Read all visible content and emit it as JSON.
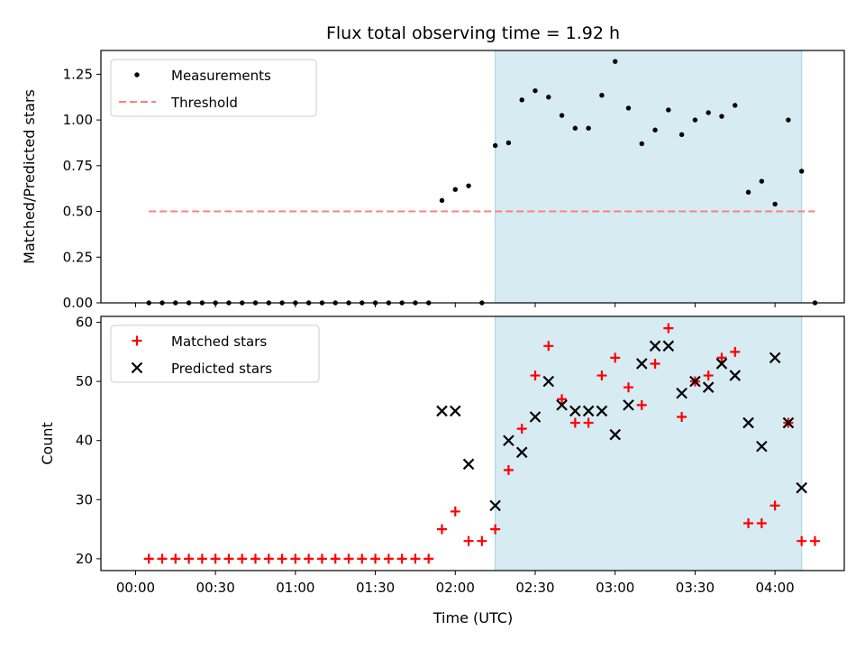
{
  "chart_data": {
    "title": "Flux total observing time = 1.92 h",
    "xlabel": "Time (UTC)",
    "x_tick_labels": [
      "00:00",
      "00:30",
      "01:00",
      "01:30",
      "02:00",
      "02:30",
      "03:00",
      "03:30",
      "04:00"
    ],
    "x_range": [
      "23:47",
      "04:26"
    ],
    "shaded_span": {
      "start": "02:15",
      "end": "04:10",
      "color": "#add8e6"
    },
    "panels": [
      {
        "type": "scatter",
        "ylabel": "Matched/Predicted stars",
        "ylim": [
          0,
          1.38
        ],
        "y_tick_labels": [
          "0.00",
          "0.25",
          "0.50",
          "0.75",
          "1.00",
          "1.25"
        ],
        "legend_position": "upper-left",
        "series": [
          {
            "name": "Measurements",
            "marker": "dot",
            "color": "#000000",
            "x": [
              "00:05",
              "00:10",
              "00:15",
              "00:20",
              "00:25",
              "00:30",
              "00:35",
              "00:40",
              "00:45",
              "00:50",
              "00:55",
              "01:00",
              "01:05",
              "01:10",
              "01:15",
              "01:20",
              "01:25",
              "01:30",
              "01:35",
              "01:40",
              "01:45",
              "01:50",
              "01:55",
              "02:00",
              "02:05",
              "02:10",
              "02:15",
              "02:20",
              "02:25",
              "02:30",
              "02:35",
              "02:40",
              "02:45",
              "02:50",
              "02:55",
              "03:00",
              "03:05",
              "03:10",
              "03:15",
              "03:20",
              "03:25",
              "03:30",
              "03:35",
              "03:40",
              "03:45",
              "03:50",
              "03:55",
              "04:00",
              "04:05",
              "04:10",
              "04:15"
            ],
            "y": [
              0,
              0,
              0,
              0,
              0,
              0,
              0,
              0,
              0,
              0,
              0,
              0,
              0,
              0,
              0,
              0,
              0,
              0,
              0,
              0,
              0,
              0,
              0.56,
              0.62,
              0.64,
              0,
              0.86,
              0.875,
              1.11,
              1.16,
              1.125,
              1.025,
              0.955,
              0.955,
              1.135,
              1.32,
              1.065,
              0.87,
              0.945,
              1.055,
              0.92,
              1.0,
              1.04,
              1.02,
              1.08,
              0.605,
              0.665,
              0.54,
              1.0,
              0.72,
              0
            ]
          },
          {
            "name": "Threshold",
            "type": "line",
            "style": "dashed",
            "color": "#ff7f7f",
            "x": [
              "00:05",
              "04:15"
            ],
            "y": [
              0.5,
              0.5
            ]
          }
        ]
      },
      {
        "type": "scatter",
        "ylabel": "Count",
        "ylim": [
          18,
          61
        ],
        "y_tick_labels": [
          "20",
          "30",
          "40",
          "50",
          "60"
        ],
        "legend_position": "upper-left",
        "series": [
          {
            "name": "Matched stars",
            "marker": "plus",
            "color": "#ff0000",
            "x": [
              "00:05",
              "00:10",
              "00:15",
              "00:20",
              "00:25",
              "00:30",
              "00:35",
              "00:40",
              "00:45",
              "00:50",
              "00:55",
              "01:00",
              "01:05",
              "01:10",
              "01:15",
              "01:20",
              "01:25",
              "01:30",
              "01:35",
              "01:40",
              "01:45",
              "01:50",
              "01:55",
              "02:00",
              "02:05",
              "02:10",
              "02:15",
              "02:20",
              "02:25",
              "02:30",
              "02:35",
              "02:40",
              "02:45",
              "02:50",
              "02:55",
              "03:00",
              "03:05",
              "03:10",
              "03:15",
              "03:20",
              "03:25",
              "03:30",
              "03:35",
              "03:40",
              "03:45",
              "03:50",
              "03:55",
              "04:00",
              "04:05",
              "04:10",
              "04:15"
            ],
            "y": [
              20,
              20,
              20,
              20,
              20,
              20,
              20,
              20,
              20,
              20,
              20,
              20,
              20,
              20,
              20,
              20,
              20,
              20,
              20,
              20,
              20,
              20,
              25,
              28,
              23,
              23,
              25,
              35,
              42,
              51,
              56,
              47,
              43,
              43,
              51,
              54,
              49,
              46,
              53,
              59,
              44,
              50,
              51,
              54,
              55,
              26,
              26,
              29,
              43,
              23,
              23
            ]
          },
          {
            "name": "Predicted stars",
            "marker": "x",
            "color": "#000000",
            "x": [
              "01:55",
              "02:00",
              "02:05",
              "02:15",
              "02:20",
              "02:25",
              "02:30",
              "02:35",
              "02:40",
              "02:45",
              "02:50",
              "02:55",
              "03:00",
              "03:05",
              "03:10",
              "03:15",
              "03:20",
              "03:25",
              "03:30",
              "03:35",
              "03:40",
              "03:45",
              "03:50",
              "03:55",
              "04:00",
              "04:05",
              "04:10"
            ],
            "y": [
              45,
              45,
              36,
              29,
              40,
              38,
              44,
              50,
              46,
              45,
              45,
              45,
              41,
              46,
              53,
              56,
              56,
              48,
              50,
              49,
              53,
              51,
              43,
              39,
              54,
              43,
              32
            ]
          }
        ]
      }
    ]
  }
}
